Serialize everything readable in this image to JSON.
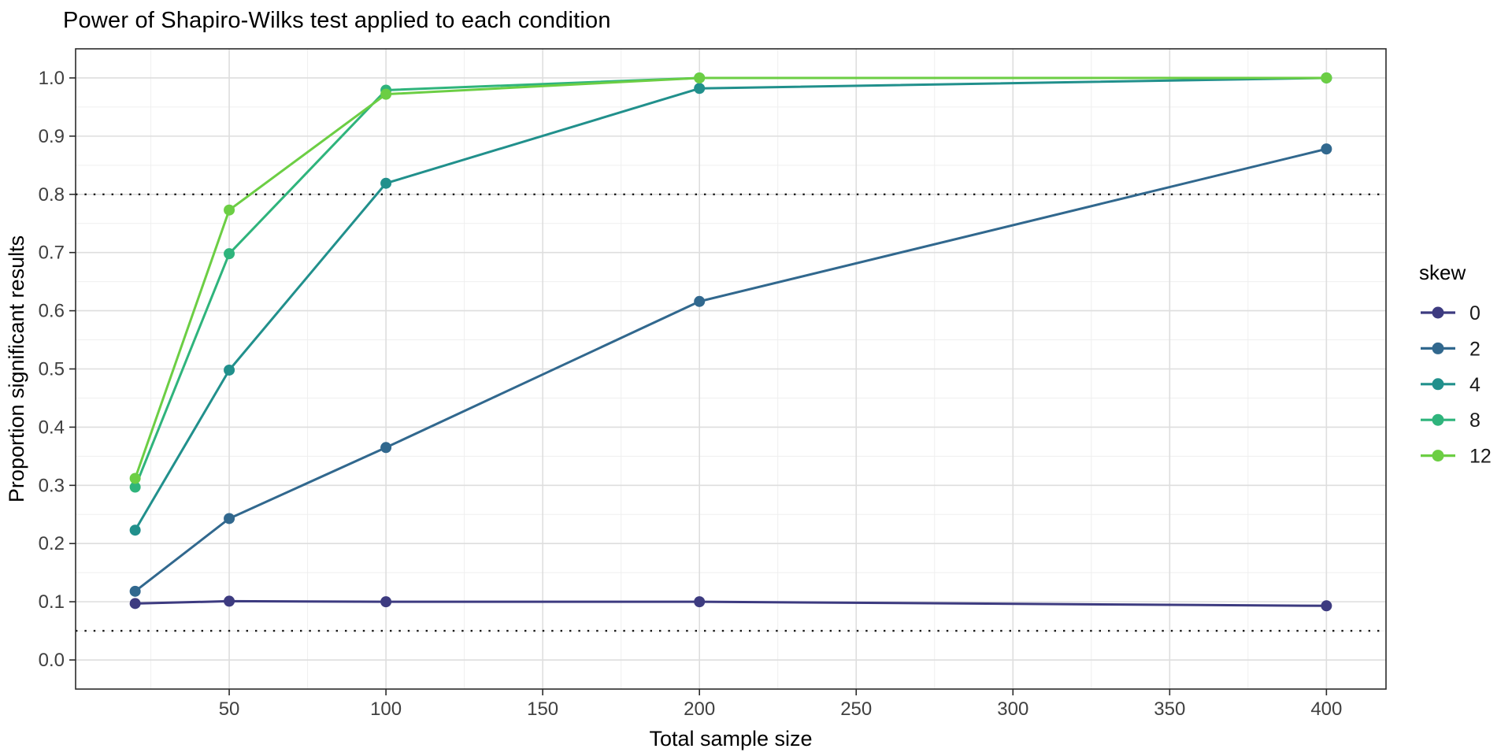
{
  "chart_data": {
    "type": "line",
    "title": "Power of Shapiro-Wilks test applied to each condition",
    "xlabel": "Total sample size",
    "ylabel": "Proportion significant results",
    "legend_title": "skew",
    "legend_position": "right",
    "grid": true,
    "x": [
      20,
      50,
      100,
      200,
      400
    ],
    "series": [
      {
        "name": "0",
        "color": "#3D3B80",
        "values": [
          0.097,
          0.101,
          0.1,
          0.1,
          0.093
        ]
      },
      {
        "name": "2",
        "color": "#31688E",
        "values": [
          0.118,
          0.243,
          0.365,
          0.616,
          0.878
        ]
      },
      {
        "name": "4",
        "color": "#21908C",
        "values": [
          0.223,
          0.498,
          0.819,
          0.982,
          1.0
        ]
      },
      {
        "name": "8",
        "color": "#2FB47C",
        "values": [
          0.297,
          0.698,
          0.979,
          1.0,
          1.0
        ]
      },
      {
        "name": "12",
        "color": "#6CCE44",
        "values": [
          0.312,
          0.773,
          0.972,
          1.0,
          1.0
        ]
      }
    ],
    "x_ticks": [
      50,
      100,
      150,
      200,
      250,
      300,
      350,
      400
    ],
    "y_ticks": [
      0.0,
      0.1,
      0.2,
      0.3,
      0.4,
      0.5,
      0.6,
      0.7,
      0.8,
      0.9,
      1.0
    ],
    "xlim": [
      1,
      419
    ],
    "ylim": [
      -0.05,
      1.05
    ],
    "hlines": [
      0.05,
      0.8
    ],
    "hline_style": "dotted",
    "colors": {
      "panel_border": "#2b2b2b",
      "grid_major": "#dedede",
      "grid_minor": "#efefef",
      "tick_label": "#404040",
      "axis_title": "#000000",
      "hline": "#1a1a1a"
    }
  }
}
